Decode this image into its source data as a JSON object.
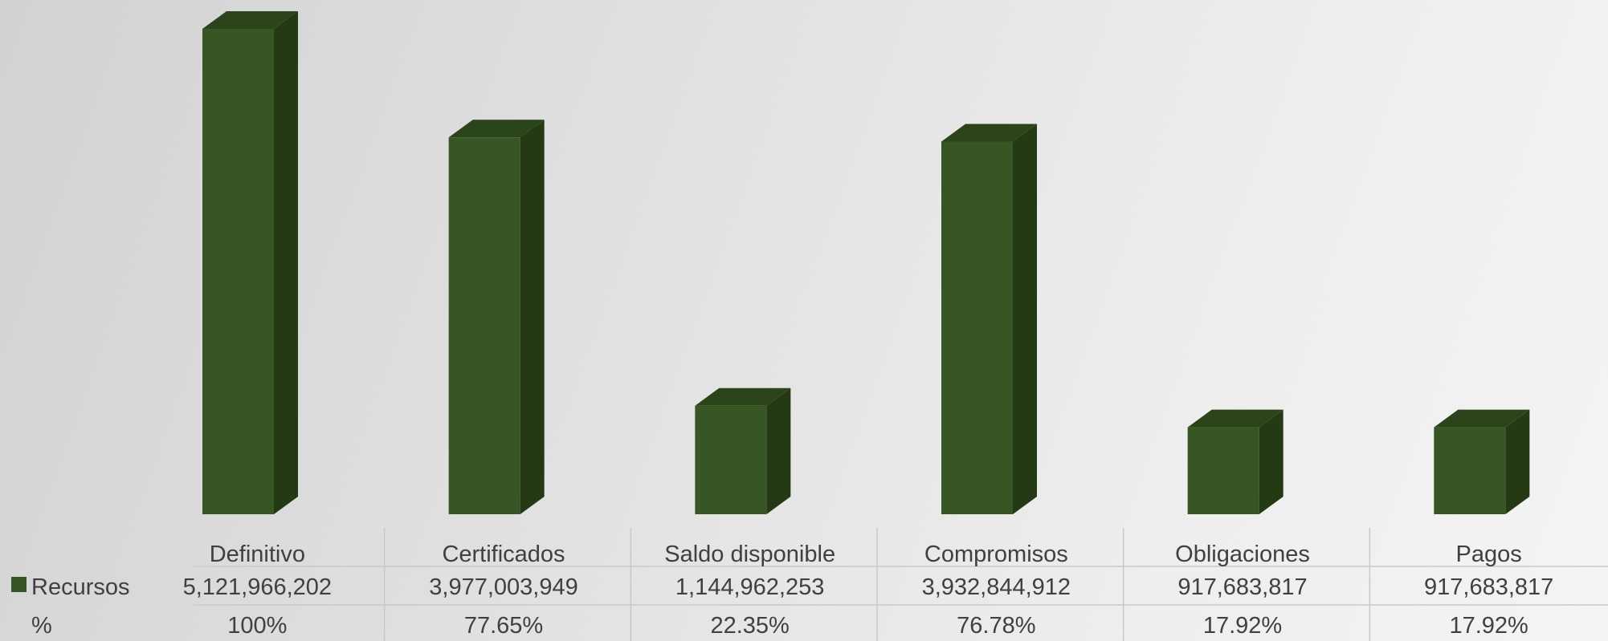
{
  "chart_data": {
    "type": "bar",
    "style": "3d-column with data table",
    "categories": [
      "Definitivo",
      "Certificados",
      "Saldo disponible",
      "Compromisos",
      "Obligaciones",
      "Pagos"
    ],
    "series": [
      {
        "name": "Recursos",
        "color": "#375623",
        "values": [
          5121966202,
          3977003949,
          1144962253,
          3932844912,
          917683817,
          917683817
        ]
      }
    ],
    "table": {
      "rows": [
        {
          "label": "Recursos",
          "legend_key": true,
          "cells": [
            "5,121,966,202",
            "3,977,003,949",
            "1,144,962,253",
            "3,932,844,912",
            "917,683,817",
            "917,683,817"
          ]
        },
        {
          "label": "%",
          "legend_key": false,
          "cells": [
            "100%",
            "77.65%",
            "22.35%",
            "76.78%",
            "17.92%",
            "17.92%"
          ]
        }
      ]
    },
    "ylim": [
      0,
      5121966202
    ],
    "grid": false,
    "legend": "in data table"
  },
  "colors": {
    "bar_front": "#375623",
    "bar_side": "#243a15",
    "bar_top": "#2b4419",
    "table_lines": "#c9c9c9"
  }
}
